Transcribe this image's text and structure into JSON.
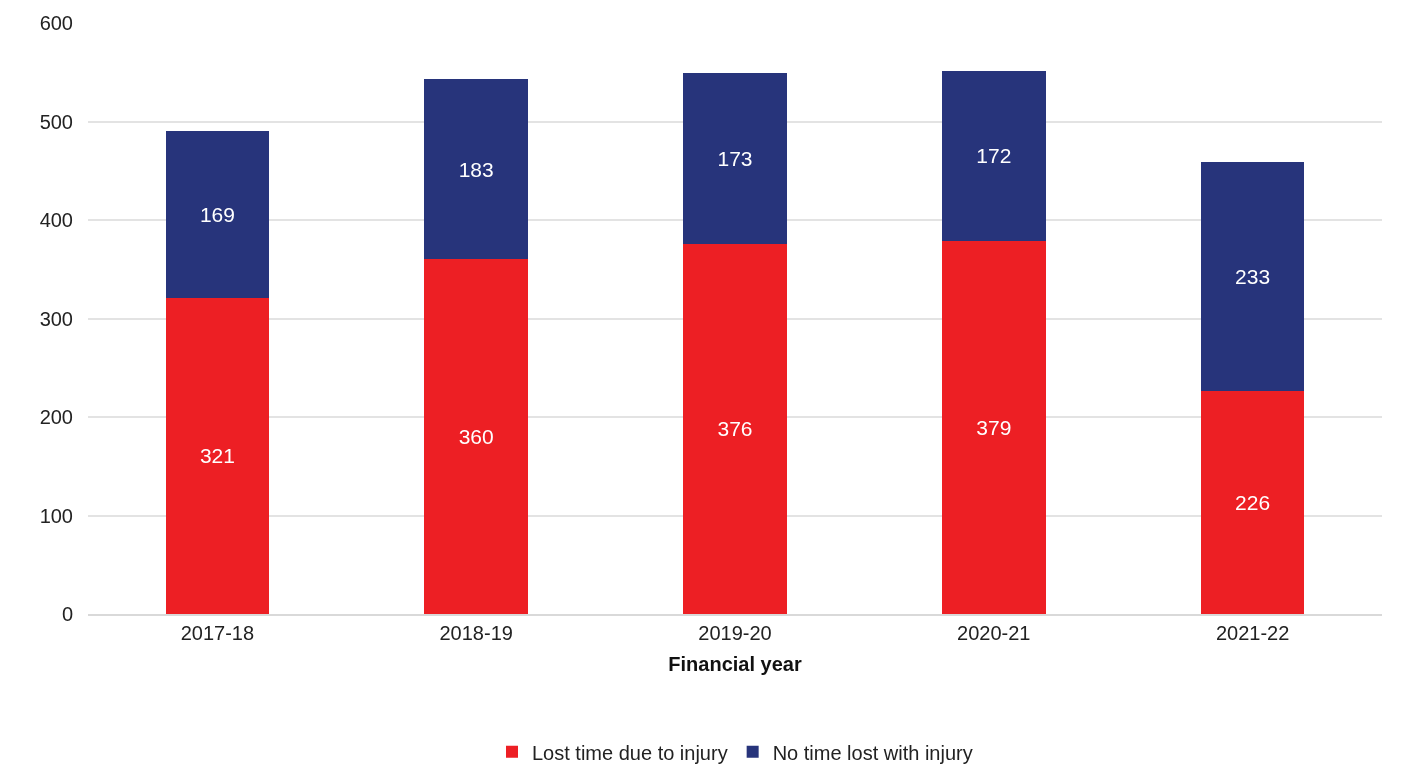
{
  "chart_data": {
    "type": "bar",
    "stacked": true,
    "xlabel": "Financial year",
    "categories": [
      "2017-18",
      "2018-19",
      "2019-20",
      "2020-21",
      "2021-22"
    ],
    "series": [
      {
        "name": "Lost time due to injury",
        "color": "#ed1f24",
        "values": [
          321,
          360,
          376,
          379,
          226
        ]
      },
      {
        "name": "No time lost with injury",
        "color": "#27347b",
        "values": [
          169,
          183,
          173,
          172,
          233
        ]
      }
    ],
    "ylim": [
      0,
      600
    ],
    "yticks": [
      0,
      100,
      200,
      300,
      400,
      500,
      600
    ],
    "grid": "y",
    "legend": "bottom",
    "data_labels": true
  }
}
